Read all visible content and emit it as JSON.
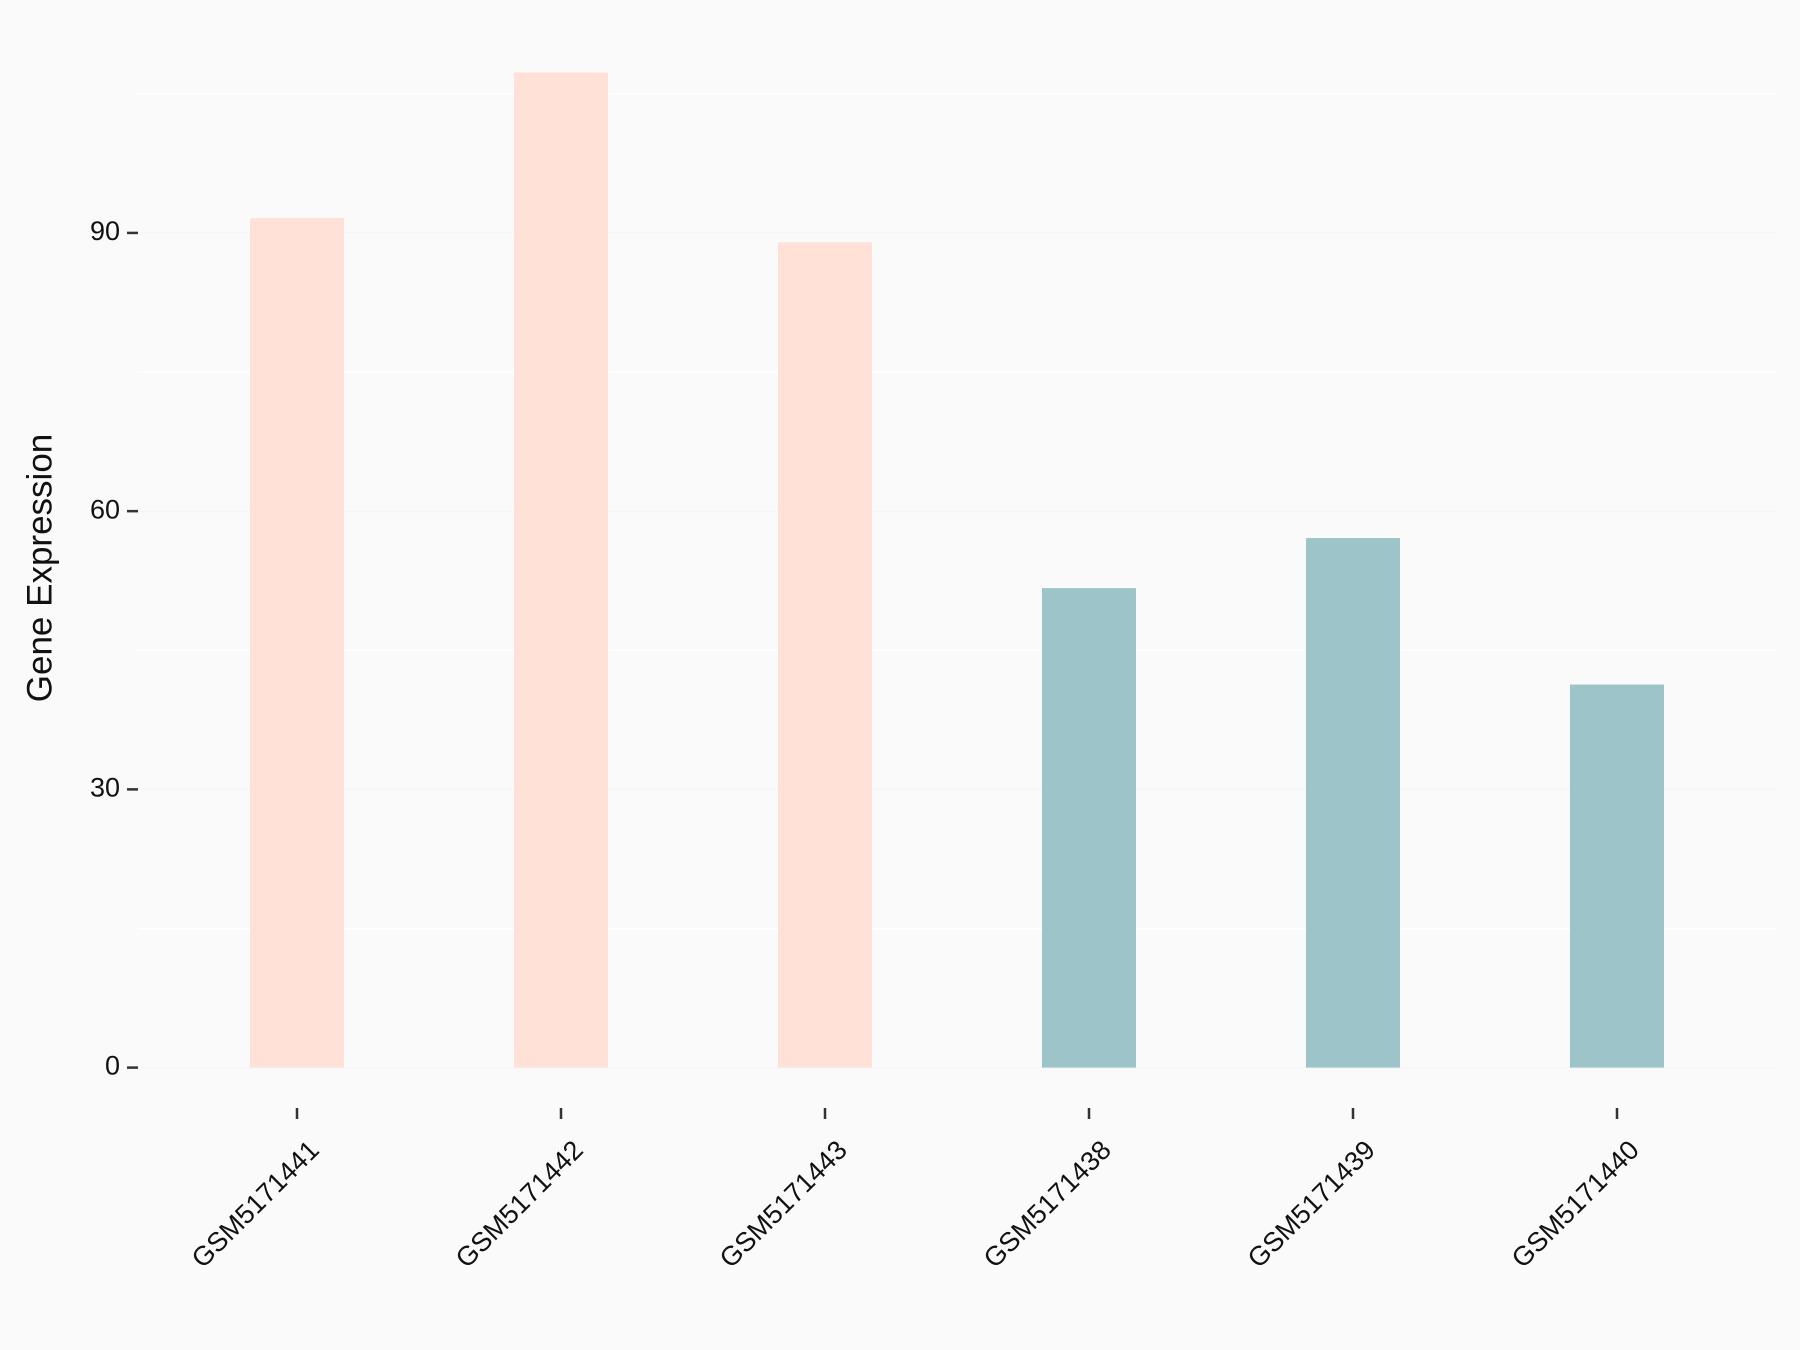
{
  "chart_data": {
    "type": "bar",
    "y_label": "Gene Expression",
    "categories": [
      "GSM5171441",
      "GSM5171442",
      "GSM5171443",
      "GSM5171438",
      "GSM5171439",
      "GSM5171440"
    ],
    "values": [
      91.6,
      107.3,
      89.0,
      51.7,
      57.1,
      41.3
    ],
    "colors": [
      "#FFE1D7",
      "#FFE1D7",
      "#FFE1D7",
      "#9DC4C8",
      "#9DC4C8",
      "#9DC4C8"
    ],
    "ylim": [
      -5.4,
      112.7
    ],
    "yticks": [
      0,
      30,
      60,
      90
    ],
    "minor_yticks": [
      15,
      45,
      75,
      105
    ],
    "grid": true
  }
}
